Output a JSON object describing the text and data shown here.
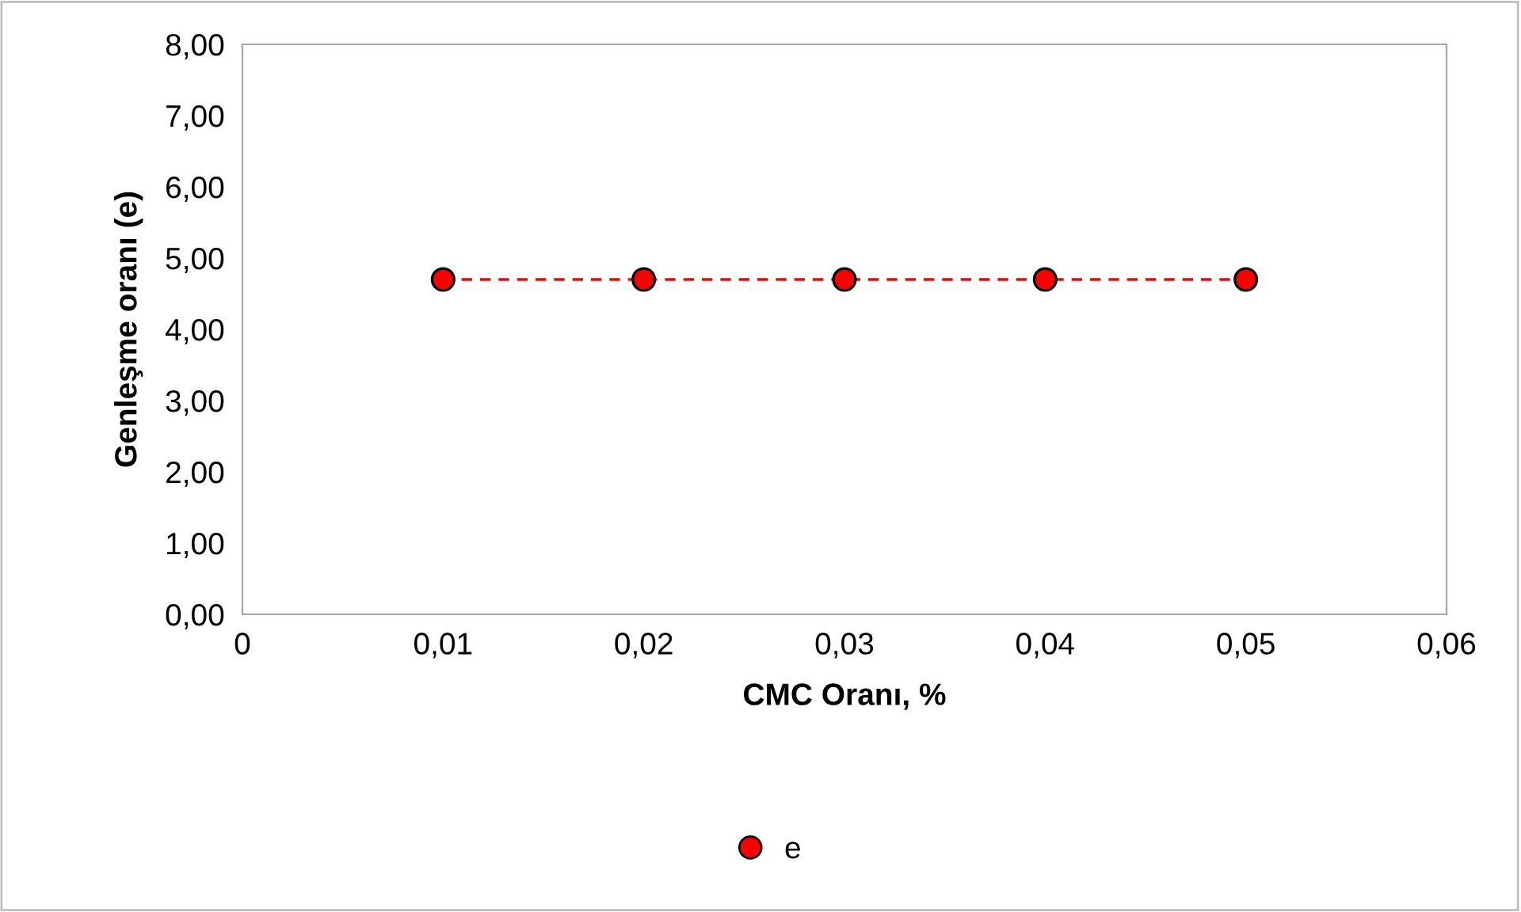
{
  "chart_data": {
    "type": "line",
    "xlabel": "CMC Oranı, %",
    "ylabel": "Genleşme oranı (e)",
    "x": [
      0.01,
      0.02,
      0.03,
      0.04,
      0.05
    ],
    "series": [
      {
        "name": "e",
        "color": "#ff0000",
        "values": [
          4.7,
          4.7,
          4.7,
          4.7,
          4.7
        ]
      }
    ],
    "marker": "circle",
    "line_style": "dashed",
    "legend": "bottom",
    "grid": false,
    "xlim": [
      0,
      0.06
    ],
    "xticks": [
      0,
      {
        "value": 0.01,
        "label": "0,01"
      },
      {
        "value": 0.02,
        "label": "0,02"
      },
      {
        "value": 0.03,
        "label": "0,03"
      },
      {
        "value": 0.04,
        "label": "0,04"
      },
      {
        "value": 0.05,
        "label": "0,05"
      },
      {
        "value": 0.06,
        "label": "0,06"
      }
    ],
    "ylim": [
      0,
      8
    ],
    "yticks": [
      {
        "value": 0,
        "label": "0,00"
      },
      {
        "value": 1,
        "label": "1,00"
      },
      {
        "value": 2,
        "label": "2,00"
      },
      {
        "value": 3,
        "label": "3,00"
      },
      {
        "value": 4,
        "label": "4,00"
      },
      {
        "value": 5,
        "label": "5,00"
      },
      {
        "value": 6,
        "label": "6,00"
      },
      {
        "value": 7,
        "label": "7,00"
      },
      {
        "value": 8,
        "label": "8,00"
      }
    ]
  }
}
